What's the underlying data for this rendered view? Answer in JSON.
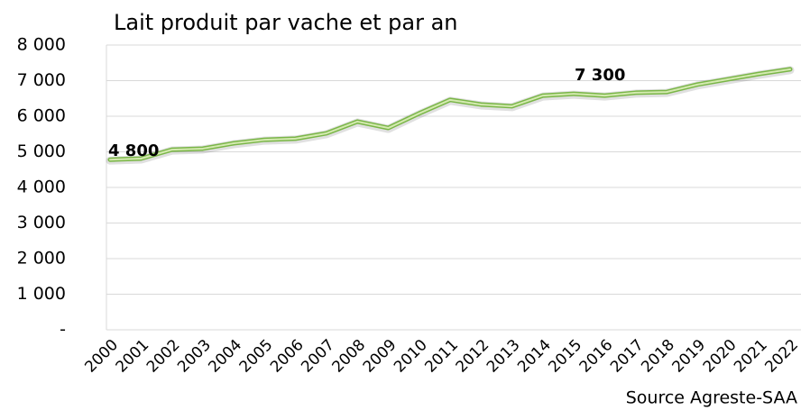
{
  "chart_data": {
    "type": "line",
    "title": "Lait produit par vache et par an",
    "source": "Source Agreste-SAA",
    "annotations": [
      "4 800",
      "7 300"
    ],
    "categories": [
      "2000",
      "2001",
      "2002",
      "2003",
      "2004",
      "2005",
      "2006",
      "2007",
      "2008",
      "2009",
      "2010",
      "2011",
      "2012",
      "2013",
      "2014",
      "2015",
      "2016",
      "2017",
      "2018",
      "2019",
      "2020",
      "2021",
      "2022"
    ],
    "series": [
      {
        "name": "Lait produit par vache",
        "color": "#7ab648",
        "values": [
          4780,
          4810,
          5060,
          5090,
          5240,
          5340,
          5370,
          5520,
          5850,
          5670,
          6080,
          6460,
          6330,
          6280,
          6580,
          6630,
          6580,
          6660,
          6680,
          6890,
          7040,
          7190,
          7320
        ]
      }
    ],
    "ylim": [
      0,
      8000
    ],
    "yticks": [
      {
        "value": 0,
        "label": "-"
      },
      {
        "value": 1000,
        "label": "1 000"
      },
      {
        "value": 2000,
        "label": "2 000"
      },
      {
        "value": 3000,
        "label": "3 000"
      },
      {
        "value": 4000,
        "label": "4 000"
      },
      {
        "value": 5000,
        "label": "5 000"
      },
      {
        "value": 6000,
        "label": "6 000"
      },
      {
        "value": 7000,
        "label": "7 000"
      },
      {
        "value": 8000,
        "label": "8 000"
      }
    ],
    "grid": true
  }
}
